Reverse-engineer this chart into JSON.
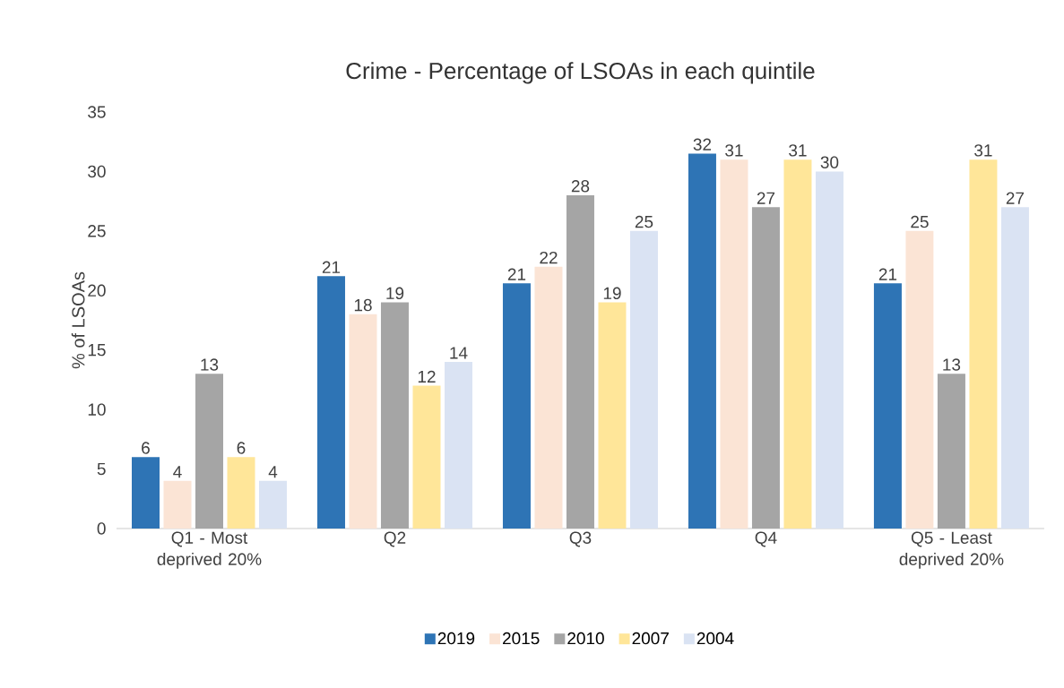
{
  "chart_data": {
    "type": "bar",
    "title": "Crime - Percentage of LSOAs in each quintile",
    "ylabel": "% of LSOAs",
    "categories": [
      "Q1 - Most deprived 20%",
      "Q2",
      "Q3",
      "Q4",
      "Q5 - Least deprived 20%"
    ],
    "series": [
      {
        "name": "2019",
        "color": "#2e74b5",
        "values": [
          6,
          21.2,
          20.6,
          31.5,
          20.6
        ],
        "value_labels": [
          "6",
          "21",
          "21",
          "32",
          "21"
        ]
      },
      {
        "name": "2015",
        "color": "#fbe4d5",
        "values": [
          4,
          18,
          22,
          31,
          25
        ],
        "value_labels": [
          "4",
          "18",
          "22",
          "31",
          "25"
        ]
      },
      {
        "name": "2010",
        "color": "#a5a5a5",
        "values": [
          13,
          19,
          28,
          27,
          13
        ],
        "value_labels": [
          "13",
          "19",
          "28",
          "27",
          "13"
        ]
      },
      {
        "name": "2007",
        "color": "#ffe699",
        "values": [
          6,
          12,
          19,
          31,
          31
        ],
        "value_labels": [
          "6",
          "12",
          "19",
          "31",
          "31"
        ]
      },
      {
        "name": "2004",
        "color": "#dae3f3",
        "values": [
          4,
          14,
          25,
          30,
          27
        ],
        "value_labels": [
          "4",
          "14",
          "25",
          "30",
          "27"
        ]
      }
    ],
    "ylim": [
      0,
      35
    ],
    "yticks": [
      0,
      5,
      10,
      15,
      20,
      25,
      30,
      35
    ],
    "grid": false,
    "legend": "bottom"
  }
}
